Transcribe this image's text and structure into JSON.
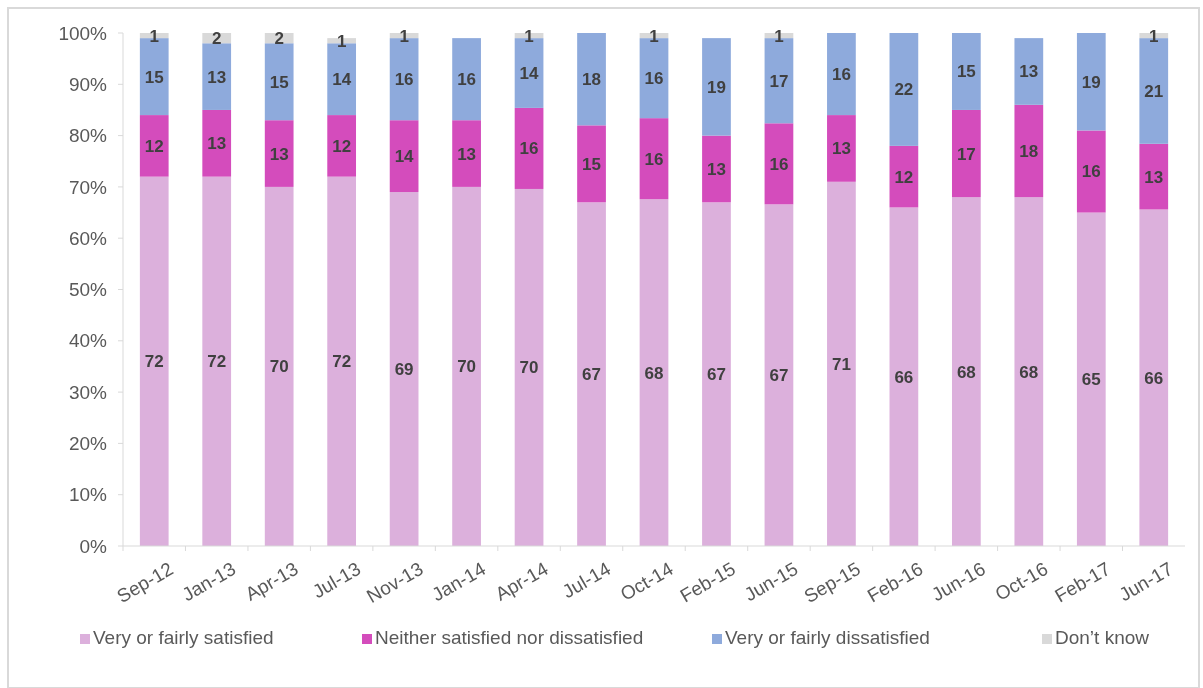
{
  "chart_data": {
    "type": "bar",
    "stacked": true,
    "categories": [
      "Sep-12",
      "Jan-13",
      "Apr-13",
      "Jul-13",
      "Nov-13",
      "Jan-14",
      "Apr-14",
      "Jul-14",
      "Oct-14",
      "Feb-15",
      "Jun-15",
      "Sep-15",
      "Feb-16",
      "Jun-16",
      "Oct-16",
      "Feb-17",
      "Jun-17"
    ],
    "series": [
      {
        "name": "Very or fairly satisfied",
        "color": "#dcb0dc",
        "values": [
          72,
          72,
          70,
          72,
          69,
          70,
          69.6,
          67,
          67.6,
          67,
          66.6,
          71,
          66,
          68,
          68,
          65,
          65.6
        ],
        "value_labels": [
          "72",
          "72",
          "70",
          "72",
          "69",
          "70",
          "70",
          "67",
          "68",
          "67",
          "67",
          "71",
          "66",
          "68",
          "68",
          "65",
          "66"
        ]
      },
      {
        "name": "Neither satisfied nor dissatisfied",
        "color": "#d44cbc",
        "values": [
          12,
          13,
          13,
          12,
          14,
          13,
          15.8,
          15,
          15.8,
          13,
          15.8,
          13,
          12,
          17,
          18,
          16,
          12.8
        ],
        "value_labels": [
          "12",
          "13",
          "13",
          "12",
          "14",
          "13",
          "16",
          "15",
          "16",
          "13",
          "16",
          "13",
          "12",
          "17",
          "18",
          "16",
          "13"
        ]
      },
      {
        "name": "Very or fairly dissatisfied",
        "color": "#8eaadc",
        "values": [
          15,
          13,
          15,
          14,
          16,
          16,
          13.6,
          18,
          15.6,
          19,
          16.6,
          16,
          22,
          15,
          13,
          19,
          20.6
        ],
        "value_labels": [
          "15",
          "13",
          "15",
          "14",
          "16",
          "16",
          "14",
          "18",
          "16",
          "19",
          "17",
          "16",
          "22",
          "15",
          "13",
          "19",
          "21"
        ]
      },
      {
        "name": "Don’t know",
        "color": "#d9d9d9",
        "values": [
          1,
          2,
          2,
          1,
          1,
          null,
          1,
          null,
          1,
          null,
          1,
          null,
          null,
          null,
          null,
          null,
          1
        ],
        "value_labels": [
          "1",
          "2",
          "2",
          "1",
          "1",
          null,
          "1",
          null,
          "1",
          null,
          "1",
          null,
          null,
          null,
          null,
          null,
          "1"
        ]
      }
    ],
    "ylim": [
      0,
      100
    ],
    "yticks": [
      {
        "value": 0,
        "label": "0%"
      },
      {
        "value": 10,
        "label": "10%"
      },
      {
        "value": 20,
        "label": "20%"
      },
      {
        "value": 30,
        "label": "30%"
      },
      {
        "value": 40,
        "label": "40%"
      },
      {
        "value": 50,
        "label": "50%"
      },
      {
        "value": 60,
        "label": "60%"
      },
      {
        "value": 70,
        "label": "70%"
      },
      {
        "value": 80,
        "label": "80%"
      },
      {
        "value": 90,
        "label": "90%"
      },
      {
        "value": 100,
        "label": "100%"
      }
    ],
    "legend": "bottom"
  }
}
